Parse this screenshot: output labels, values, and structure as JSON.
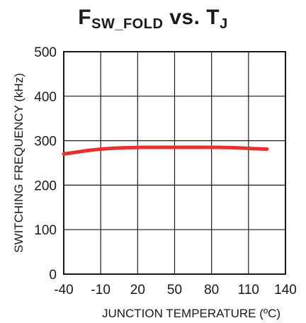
{
  "chart_data": {
    "type": "line",
    "title": {
      "main": "F",
      "main_sub": "SW_FOLD",
      "mid": " vs. T",
      "mid_sub": "J"
    },
    "xlabel": "JUNCTION TEMPERATURE (ºC)",
    "ylabel": "SWITCHING FREQUENCY (kHz)",
    "xlim": [
      -40,
      140
    ],
    "ylim": [
      0,
      500
    ],
    "xticks": [
      -40,
      -10,
      20,
      50,
      80,
      110,
      140
    ],
    "yticks": [
      0,
      100,
      200,
      300,
      400,
      500
    ],
    "grid": true,
    "legend": "none",
    "series": [
      {
        "color": "#e8312f",
        "x": [
          -40,
          -30,
          -20,
          -10,
          0,
          10,
          25,
          40,
          55,
          70,
          85,
          100,
          115,
          125
        ],
        "y": [
          270,
          274,
          278,
          281,
          283,
          284,
          285,
          285,
          285,
          285,
          285,
          284,
          282,
          281
        ]
      }
    ]
  }
}
